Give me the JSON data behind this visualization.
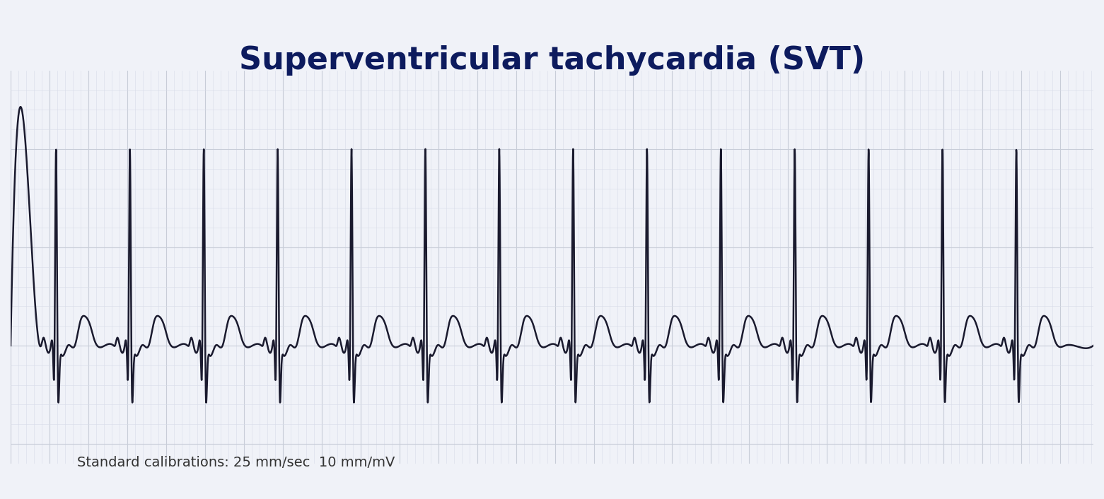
{
  "title": "Superventricular tachycardia (SVT)",
  "title_color": "#0d1b5e",
  "title_fontsize": 32,
  "title_fontweight": "bold",
  "calibration_text": "Standard calibrations: 25 mm/sec  10 mm/mV",
  "calibration_fontsize": 14,
  "calibration_color": "#333333",
  "bg_color": "#f0f2f8",
  "grid_color": "#c8cdd8",
  "grid_minor_color": "#d8dce8",
  "ecg_color": "#1a1a2e",
  "ecg_linewidth": 1.8,
  "num_beats": 14,
  "beat_period": 0.38,
  "figure_width": 15.61,
  "figure_height": 7.06
}
